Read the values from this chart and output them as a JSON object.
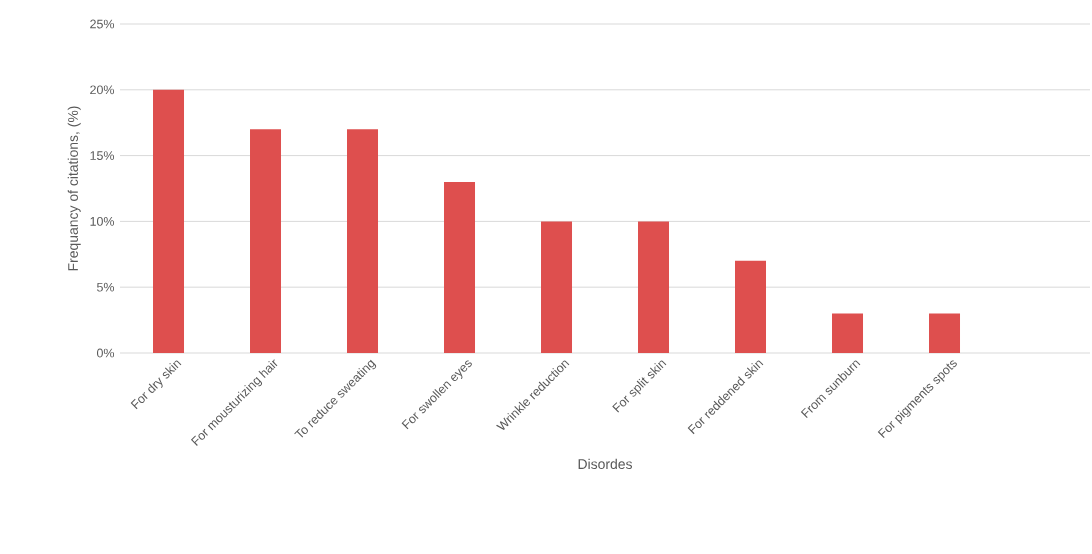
{
  "chart_data": {
    "type": "bar",
    "xlabel": "Disordes",
    "ylabel": "Frequancy of citations, (%)",
    "categories": [
      "For dry skin",
      "For mousturizing hair",
      "To reduce sweating",
      "For swollen eyes",
      "Wrinkle reduction",
      "For split skin",
      "For reddened skin",
      "From sunburn",
      "For pigments spots",
      null
    ],
    "values": [
      20,
      17,
      17,
      13,
      10,
      10,
      7,
      3,
      3,
      null
    ],
    "color": "#de4f4e",
    "ylim": [
      0,
      25
    ],
    "yticks": [
      {
        "value": 0,
        "label": "0%"
      },
      {
        "value": 5,
        "label": "5%"
      },
      {
        "value": 10,
        "label": "10%"
      },
      {
        "value": 15,
        "label": "15%"
      },
      {
        "value": 20,
        "label": "20%"
      },
      {
        "value": 25,
        "label": "25%"
      }
    ],
    "grid": "y"
  }
}
